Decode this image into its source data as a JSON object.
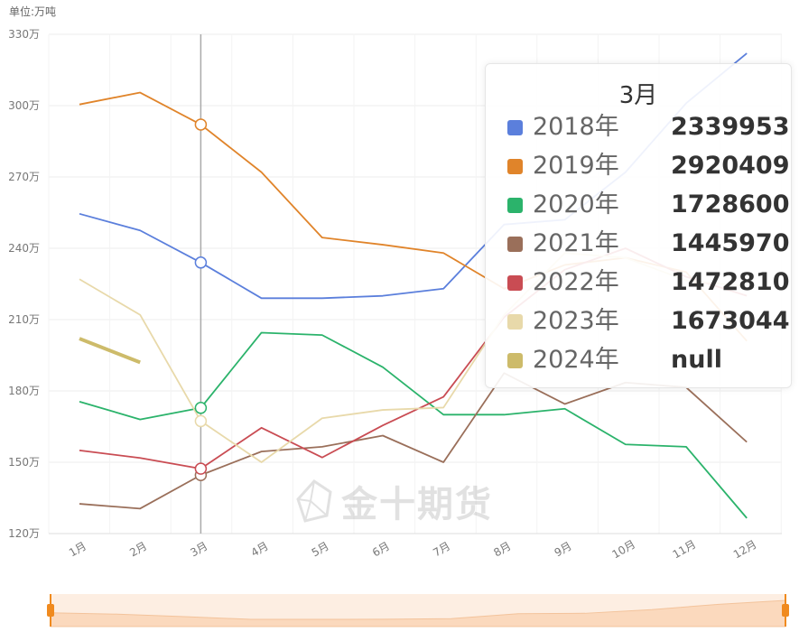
{
  "unit_label": "单位:万吨",
  "watermark": "金十期货",
  "tooltip": {
    "title": "3月",
    "rows": [
      {
        "name": "2018年",
        "value": "2339953",
        "color": "#5b7fdc"
      },
      {
        "name": "2019年",
        "value": "2920409",
        "color": "#e0842a"
      },
      {
        "name": "2020年",
        "value": "1728600",
        "color": "#2bb36b"
      },
      {
        "name": "2021年",
        "value": "1445970",
        "color": "#9a6f5a"
      },
      {
        "name": "2022年",
        "value": "1472810",
        "color": "#c94c53"
      },
      {
        "name": "2023年",
        "value": "1673044",
        "color": "#e8d9aa"
      },
      {
        "name": "2024年",
        "value": "null",
        "color": "#cdbb6a"
      }
    ]
  },
  "chart_data": {
    "type": "line",
    "categories": [
      "1月",
      "2月",
      "3月",
      "4月",
      "5月",
      "6月",
      "7月",
      "8月",
      "9月",
      "10月",
      "11月",
      "12月"
    ],
    "y_ticks": [
      "120万",
      "150万",
      "180万",
      "210万",
      "240万",
      "270万",
      "300万",
      "330万"
    ],
    "ylim": [
      1200000,
      3300000
    ],
    "highlight_category": "3月",
    "series": [
      {
        "name": "2018年",
        "color": "#5b7fdc",
        "values": [
          2545000,
          2475000,
          2339953,
          2190000,
          2190000,
          2200000,
          2230000,
          2500000,
          2520000,
          2720000,
          3010000,
          3220000
        ]
      },
      {
        "name": "2019年",
        "color": "#e0842a",
        "values": [
          3005000,
          3055000,
          2920409,
          2720000,
          2445000,
          2415000,
          2380000,
          2230000,
          2330000,
          2360000,
          2300000,
          2010000
        ]
      },
      {
        "name": "2020年",
        "color": "#2bb36b",
        "values": [
          1755000,
          1680000,
          1728600,
          2045000,
          2035000,
          1900000,
          1700000,
          1700000,
          1725000,
          1575000,
          1565000,
          1265000
        ]
      },
      {
        "name": "2021年",
        "color": "#9a6f5a",
        "values": [
          1325000,
          1305000,
          1445970,
          1545000,
          1565000,
          1612000,
          1500000,
          1875000,
          1745000,
          1835000,
          1815000,
          1585000
        ]
      },
      {
        "name": "2022年",
        "color": "#c94c53",
        "values": [
          1550000,
          1518000,
          1472810,
          1645000,
          1520000,
          1655000,
          1775000,
          2110000,
          2310000,
          2400000,
          2280000,
          2200000
        ]
      },
      {
        "name": "2023年",
        "color": "#e8d9aa",
        "values": [
          2270000,
          2120000,
          1673044,
          1500000,
          1685000,
          1720000,
          1730000,
          2120000,
          2380000,
          2360000,
          2265000,
          2240000
        ]
      },
      {
        "name": "2024年",
        "color": "#cdbb6a",
        "values": [
          2020000,
          1920000,
          null,
          null,
          null,
          null,
          null,
          null,
          null,
          null,
          null,
          null
        ]
      }
    ]
  }
}
